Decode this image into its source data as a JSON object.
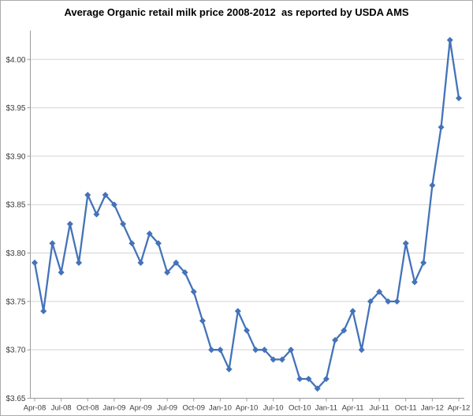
{
  "chart_data": {
    "type": "line",
    "title": "Average Organic retail milk price 2008-2012  as reported by USDA AMS",
    "xlabel": "",
    "ylabel": "",
    "legend": "none",
    "grid": "horizontal",
    "marker": "diamond",
    "x": [
      "Apr-08",
      "May-08",
      "Jun-08",
      "Jul-08",
      "Aug-08",
      "Sep-08",
      "Oct-08",
      "Nov-08",
      "Dec-08",
      "Jan-09",
      "Feb-09",
      "Mar-09",
      "Apr-09",
      "May-09",
      "Jun-09",
      "Jul-09",
      "Aug-09",
      "Sep-09",
      "Oct-09",
      "Nov-09",
      "Dec-09",
      "Jan-10",
      "Feb-10",
      "Mar-10",
      "Apr-10",
      "May-10",
      "Jun-10",
      "Jul-10",
      "Aug-10",
      "Sep-10",
      "Oct-10",
      "Nov-10",
      "Dec-10",
      "Jan-11",
      "Feb-11",
      "Mar-11",
      "Apr-11",
      "May-11",
      "Jun-11",
      "Jul-11",
      "Aug-11",
      "Sep-11",
      "Oct-11",
      "Nov-11",
      "Dec-11",
      "Jan-12",
      "Feb-12",
      "Mar-12",
      "Apr-12"
    ],
    "values": [
      3.79,
      3.74,
      3.81,
      3.78,
      3.83,
      3.79,
      3.86,
      3.84,
      3.86,
      3.85,
      3.83,
      3.81,
      3.79,
      3.82,
      3.81,
      3.78,
      3.79,
      3.78,
      3.76,
      3.73,
      3.7,
      3.7,
      3.68,
      3.74,
      3.72,
      3.7,
      3.7,
      3.69,
      3.69,
      3.7,
      3.67,
      3.67,
      3.66,
      3.67,
      3.71,
      3.72,
      3.74,
      3.7,
      3.75,
      3.76,
      3.75,
      3.75,
      3.81,
      3.77,
      3.79,
      3.87,
      3.93,
      4.02,
      3.96
    ],
    "x_tick_labels": [
      "Apr-08",
      "Jul-08",
      "Oct-08",
      "Jan-09",
      "Apr-09",
      "Jul-09",
      "Oct-09",
      "Jan-10",
      "Apr-10",
      "Jul-10",
      "Oct-10",
      "Jan-11",
      "Apr-11",
      "Jul-11",
      "Oct-11",
      "Jan-12",
      "Apr-12"
    ],
    "x_tick_every": 3,
    "y_ticks": [
      3.65,
      3.7,
      3.75,
      3.8,
      3.85,
      3.9,
      3.95,
      4.0
    ],
    "y_tick_labels": [
      "$3.65",
      "$3.70",
      "$3.75",
      "$3.80",
      "$3.85",
      "$3.90",
      "$3.95",
      "$4.00"
    ],
    "ylim": [
      3.65,
      4.03
    ],
    "colors": {
      "line": "#4473b9",
      "grid": "#d3d3d3",
      "axis": "#9b9b9b",
      "tick_text": "#3c3c3c",
      "title_text": "#000000",
      "background": "#ffffff"
    }
  }
}
